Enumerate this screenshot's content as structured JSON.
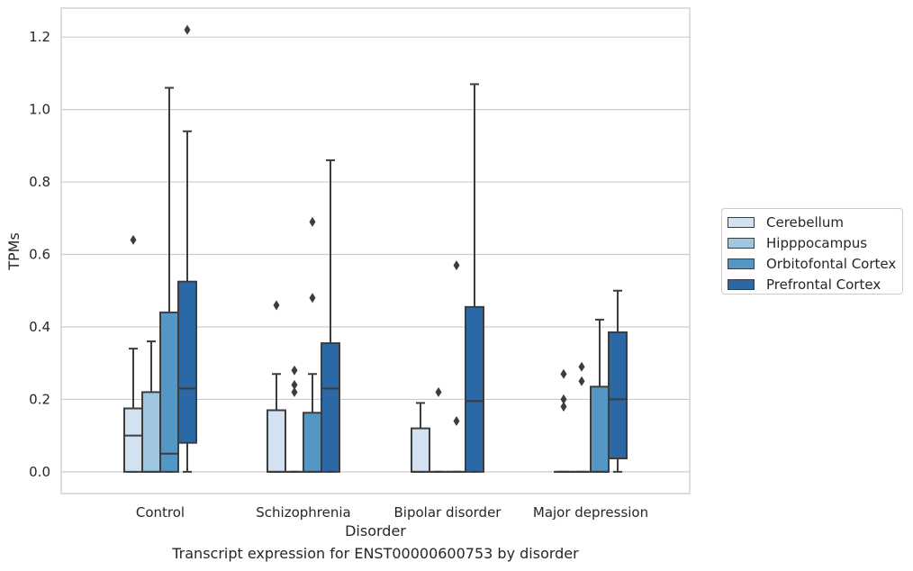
{
  "chart_data": {
    "type": "box",
    "title": "",
    "caption": "Transcript expression for ENST00000600753 by disorder",
    "xlabel": "Disorder",
    "ylabel": "TPMs",
    "ylim": [
      -0.06,
      1.28
    ],
    "yticks": [
      0.0,
      0.2,
      0.4,
      0.6,
      0.8,
      1.0,
      1.2
    ],
    "ytick_labels": [
      "0.0",
      "0.2",
      "0.4",
      "0.6",
      "0.8",
      "1.0",
      "1.2"
    ],
    "grid": "horizontal",
    "legend_position": "right",
    "categories": [
      "Control",
      "Schizophrenia",
      "Bipolar disorder",
      "Major depression"
    ],
    "series": [
      {
        "name": "Cerebellum",
        "color": "#d2e2f1",
        "boxes": [
          {
            "whisker_low": 0.0,
            "q1": 0.0,
            "median": 0.1,
            "q3": 0.175,
            "whisker_high": 0.34,
            "outliers": [
              0.64
            ]
          },
          {
            "whisker_low": 0.0,
            "q1": 0.0,
            "median": 0.0,
            "q3": 0.17,
            "whisker_high": 0.27,
            "outliers": [
              0.46
            ]
          },
          {
            "whisker_low": 0.0,
            "q1": 0.0,
            "median": 0.0,
            "q3": 0.12,
            "whisker_high": 0.19,
            "outliers": []
          },
          {
            "whisker_low": 0.0,
            "q1": 0.0,
            "median": 0.0,
            "q3": 0.0,
            "whisker_high": 0.0,
            "outliers": [
              0.18,
              0.2,
              0.27
            ]
          }
        ]
      },
      {
        "name": "Hipppocampus",
        "color": "#9fc7e2",
        "boxes": [
          {
            "whisker_low": 0.0,
            "q1": 0.0,
            "median": 0.0,
            "q3": 0.22,
            "whisker_high": 0.36,
            "outliers": []
          },
          {
            "whisker_low": 0.0,
            "q1": 0.0,
            "median": 0.0,
            "q3": 0.0,
            "whisker_high": 0.0,
            "outliers": [
              0.22,
              0.24,
              0.28
            ]
          },
          {
            "whisker_low": 0.0,
            "q1": 0.0,
            "median": 0.0,
            "q3": 0.0,
            "whisker_high": 0.0,
            "outliers": [
              0.22
            ]
          },
          {
            "whisker_low": 0.0,
            "q1": 0.0,
            "median": 0.0,
            "q3": 0.0,
            "whisker_high": 0.0,
            "outliers": [
              0.25,
              0.29
            ]
          }
        ]
      },
      {
        "name": "Orbitofontal Cortex",
        "color": "#5497c4",
        "boxes": [
          {
            "whisker_low": 0.0,
            "q1": 0.0,
            "median": 0.05,
            "q3": 0.44,
            "whisker_high": 1.06,
            "outliers": []
          },
          {
            "whisker_low": 0.0,
            "q1": 0.0,
            "median": 0.0,
            "q3": 0.163,
            "whisker_high": 0.27,
            "outliers": [
              0.48,
              0.69
            ]
          },
          {
            "whisker_low": 0.0,
            "q1": 0.0,
            "median": 0.0,
            "q3": 0.0,
            "whisker_high": 0.0,
            "outliers": [
              0.14,
              0.57
            ]
          },
          {
            "whisker_low": 0.0,
            "q1": 0.0,
            "median": 0.0,
            "q3": 0.235,
            "whisker_high": 0.42,
            "outliers": []
          }
        ]
      },
      {
        "name": "Prefrontal Cortex",
        "color": "#2a69a6",
        "boxes": [
          {
            "whisker_low": 0.0,
            "q1": 0.08,
            "median": 0.23,
            "q3": 0.525,
            "whisker_high": 0.94,
            "outliers": [
              1.22
            ]
          },
          {
            "whisker_low": 0.0,
            "q1": 0.0,
            "median": 0.23,
            "q3": 0.355,
            "whisker_high": 0.86,
            "outliers": []
          },
          {
            "whisker_low": 0.0,
            "q1": 0.0,
            "median": 0.195,
            "q3": 0.455,
            "whisker_high": 1.07,
            "outliers": []
          },
          {
            "whisker_low": 0.0,
            "q1": 0.037,
            "median": 0.2,
            "q3": 0.385,
            "whisker_high": 0.5,
            "outliers": []
          }
        ]
      }
    ]
  }
}
